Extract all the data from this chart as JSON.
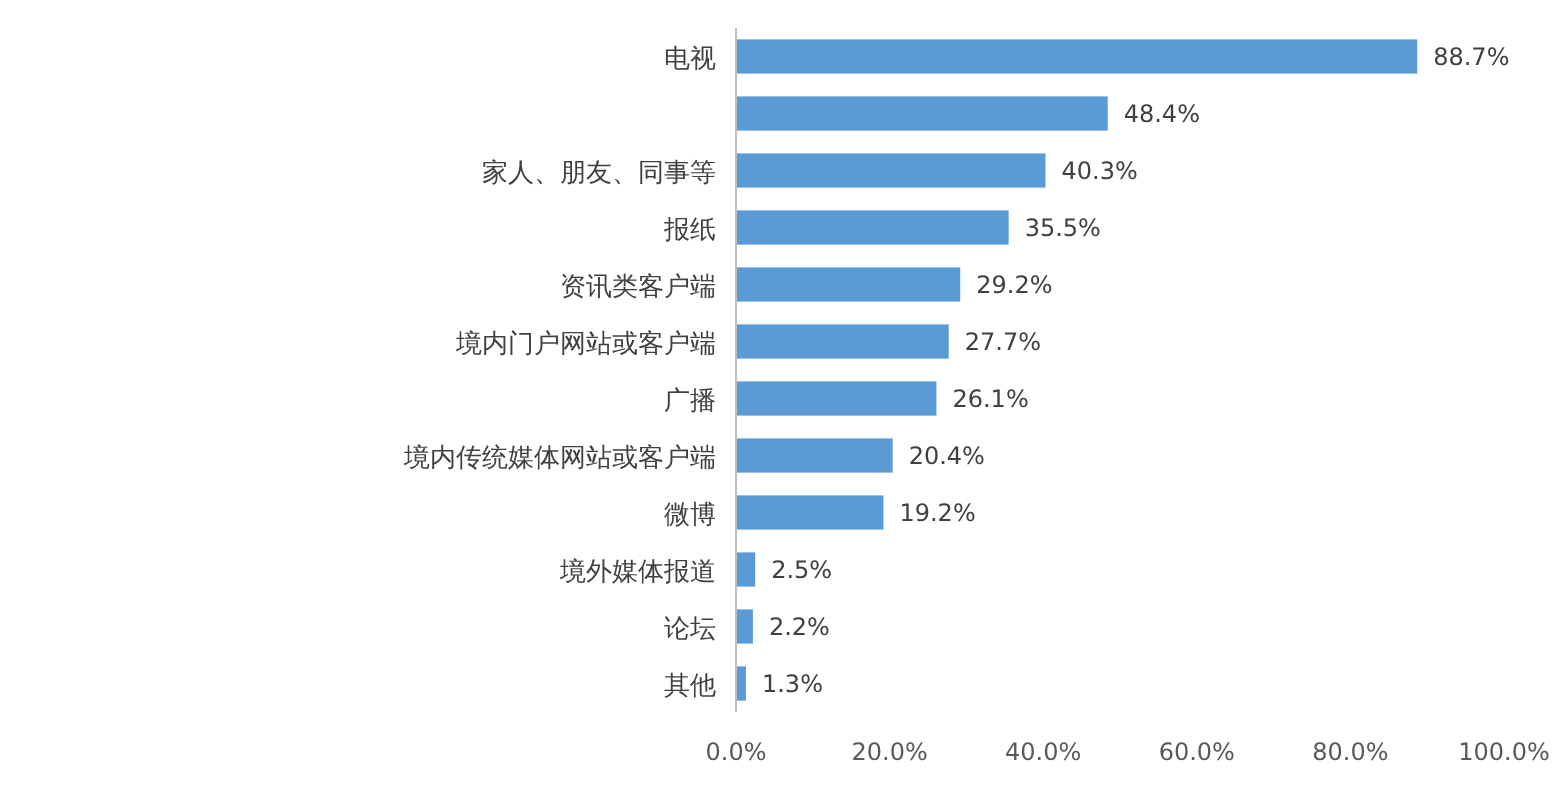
{
  "chart_data": {
    "type": "bar",
    "orientation": "horizontal",
    "categories": [
      "电视",
      null,
      "家人、朋友、同事等",
      "报纸",
      "资讯类客户端",
      "境内门户网站或客户端",
      "广播",
      "境内传统媒体网站或客户端",
      "微博",
      "境外媒体报道",
      "论坛",
      "其他"
    ],
    "values": [
      88.7,
      48.4,
      40.3,
      35.5,
      29.2,
      27.7,
      26.1,
      20.4,
      19.2,
      2.5,
      2.2,
      1.3
    ],
    "value_labels": [
      "88.7%",
      "48.4%",
      "40.3%",
      "35.5%",
      "29.2%",
      "27.7%",
      "26.1%",
      "20.4%",
      "19.2%",
      "2.5%",
      "2.2%",
      "1.3%"
    ],
    "color": "#5b9bd5",
    "xlim": [
      0,
      100
    ],
    "xticks": [
      {
        "value": 0,
        "label": "0.0%"
      },
      {
        "value": 20,
        "label": "20.0%"
      },
      {
        "value": 40,
        "label": "40.0%"
      },
      {
        "value": 60,
        "label": "60.0%"
      },
      {
        "value": 80,
        "label": "80.0%"
      },
      {
        "value": 100,
        "label": "100.0%"
      }
    ],
    "grid": false
  }
}
